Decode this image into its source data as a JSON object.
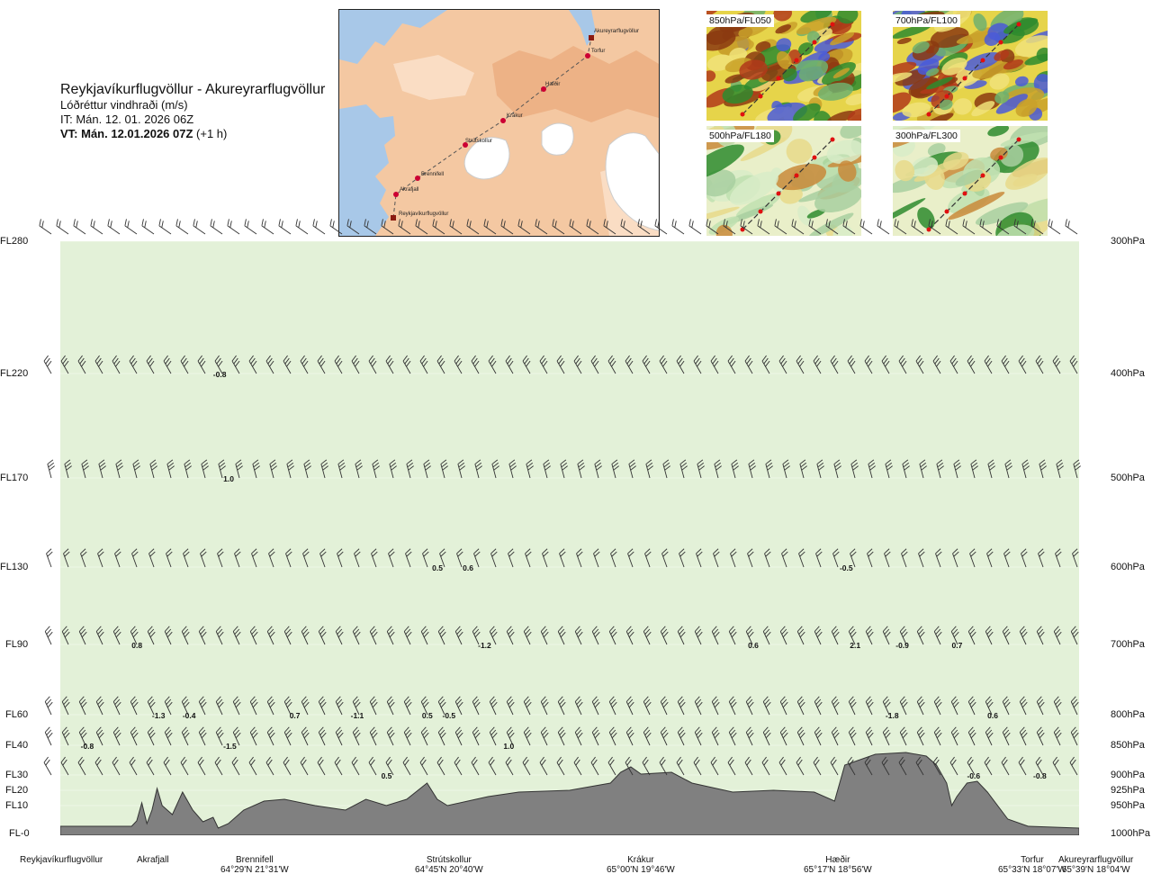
{
  "title": {
    "route": "Reykjavíkurflugvöllur - Akureyrarflugvöllur",
    "subtitle": "Lóðréttur vindhraði (m/s)",
    "issue_time": "IT: Mán. 12. 01. 2026 06Z",
    "valid_time": "VT: Mán. 12.01.2026 07Z",
    "lead": "(+1 h)"
  },
  "route_map": {
    "waypoints": [
      "Akureyrarflugvöllur",
      "Torfur",
      "Hæðir",
      "Krákur",
      "Strútskollur",
      "Brennifell",
      "Akrafjall",
      "Reykjavíkurflugvöllur"
    ]
  },
  "thumbnails": [
    {
      "label": "850hPa/FL050"
    },
    {
      "label": "700hPa/FL100"
    },
    {
      "label": "500hPa/FL180"
    },
    {
      "label": "300hPa/FL300"
    }
  ],
  "colors": {
    "strong_down": "#cc1111",
    "down": "#8b1a10",
    "weak_down": "#b8651b",
    "light_down": "#e8c22a",
    "faint_down": "#f3e9a4",
    "faint_up": "#dcefd3",
    "light_up": "#a4d49a",
    "up": "#4a9e4a",
    "strong_up": "#0d7a1e",
    "very_strong_up": "#5c6ad8",
    "extreme_up": "#3a1fa0",
    "terrain": "#808080"
  },
  "chart_data": {
    "type": "heatmap",
    "variable": "Lóðréttur vindhraði (m/s)",
    "y_levels_left": [
      "FL280",
      "FL220",
      "FL170",
      "FL130",
      "FL90",
      "FL60",
      "FL40",
      "FL30",
      "FL20",
      "FL10",
      "FL-0"
    ],
    "y_levels_right": [
      "300hPa",
      "400hPa",
      "500hPa",
      "600hPa",
      "700hPa",
      "800hPa",
      "850hPa",
      "900hPa",
      "925hPa",
      "950hPa",
      "1000hPa"
    ],
    "stations": [
      {
        "name": "Reykjavíkurflugvöllur",
        "coord": ""
      },
      {
        "name": "Akrafjall",
        "coord": ""
      },
      {
        "name": "Brennifell",
        "coord": "64°29'N 21°31'W"
      },
      {
        "name": "Strútskollur",
        "coord": "64°45'N 20°40'W"
      },
      {
        "name": "Krákur",
        "coord": "65°00'N 19°46'W"
      },
      {
        "name": "Hæðir",
        "coord": "65°17'N 18°56'W"
      },
      {
        "name": "Torfur",
        "coord": "65°33'N 18°07'W"
      },
      {
        "name": "Akureyrarflugvöllur",
        "coord": "65°39'N 18°04'W"
      }
    ],
    "value_labels": [
      {
        "text": "-0.8",
        "level": "FL220",
        "x_frac": 0.15
      },
      {
        "text": "1.0",
        "level": "FL170",
        "x_frac": 0.16
      },
      {
        "text": "0.5",
        "level": "FL130",
        "x_frac": 0.365
      },
      {
        "text": "0.6",
        "level": "FL130",
        "x_frac": 0.395
      },
      {
        "text": "-0.5",
        "level": "FL130",
        "x_frac": 0.765
      },
      {
        "text": "0.8",
        "level": "FL90",
        "x_frac": 0.07
      },
      {
        "text": "-1.2",
        "level": "FL90",
        "x_frac": 0.41
      },
      {
        "text": "0.6",
        "level": "FL90",
        "x_frac": 0.675
      },
      {
        "text": "2.1",
        "level": "FL90",
        "x_frac": 0.775
      },
      {
        "text": "-0.9",
        "level": "FL90",
        "x_frac": 0.82
      },
      {
        "text": "0.7",
        "level": "FL90",
        "x_frac": 0.875
      },
      {
        "text": "-1.3",
        "level": "FL60",
        "x_frac": 0.09
      },
      {
        "text": "-0.4",
        "level": "FL60",
        "x_frac": 0.12
      },
      {
        "text": "0.7",
        "level": "FL60",
        "x_frac": 0.225
      },
      {
        "text": "-1.1",
        "level": "FL60",
        "x_frac": 0.285
      },
      {
        "text": "0.5",
        "level": "FL60",
        "x_frac": 0.355
      },
      {
        "text": "-0.5",
        "level": "FL60",
        "x_frac": 0.375
      },
      {
        "text": "-1.8",
        "level": "FL60",
        "x_frac": 0.81
      },
      {
        "text": "0.6",
        "level": "FL60",
        "x_frac": 0.91
      },
      {
        "text": "-0.8",
        "level": "FL40",
        "x_frac": 0.02
      },
      {
        "text": "-1.5",
        "level": "FL40",
        "x_frac": 0.16
      },
      {
        "text": "1.0",
        "level": "FL40",
        "x_frac": 0.435
      },
      {
        "text": "0.5",
        "level": "FL30",
        "x_frac": 0.315
      },
      {
        "text": "-0.6",
        "level": "FL30",
        "x_frac": 0.89
      },
      {
        "text": "-0.8",
        "level": "FL30",
        "x_frac": 0.955
      }
    ]
  }
}
